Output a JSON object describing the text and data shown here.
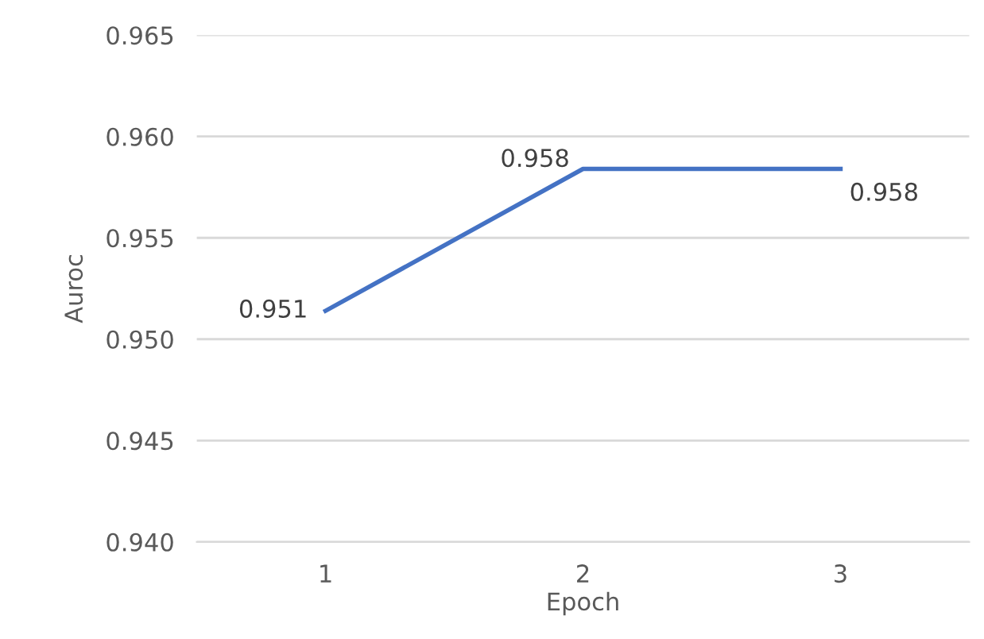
{
  "chart_data": {
    "type": "line",
    "xlabel": "Epoch",
    "ylabel": "Auroc",
    "categories": [
      "1",
      "2",
      "3"
    ],
    "series": [
      {
        "color": "#4472c4",
        "values": [
          0.9514,
          0.9584,
          0.9584
        ],
        "value_labels": [
          "0.951",
          "0.958",
          "0.958"
        ]
      }
    ],
    "ylim": [
      0.94,
      0.965
    ],
    "yticks": [
      {
        "value": 0.94,
        "label": "0.940"
      },
      {
        "value": 0.945,
        "label": "0.945"
      },
      {
        "value": 0.95,
        "label": "0.950"
      },
      {
        "value": 0.955,
        "label": "0.955"
      },
      {
        "value": 0.96,
        "label": "0.960"
      },
      {
        "value": 0.965,
        "label": "0.965"
      }
    ],
    "grid": "y",
    "marker": "none",
    "line_style": "solid"
  }
}
